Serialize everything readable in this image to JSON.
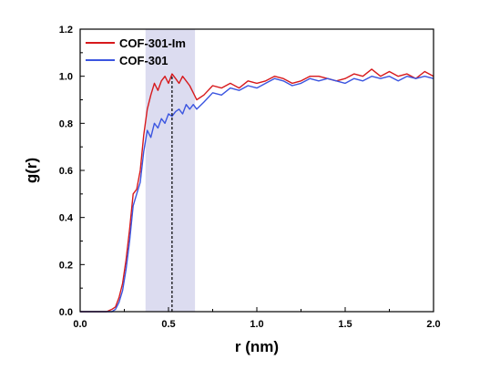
{
  "chart_data": {
    "type": "line",
    "title": "",
    "xlabel": "r (nm)",
    "ylabel": "g(r)",
    "xlim": [
      0.0,
      2.0
    ],
    "ylim": [
      0.0,
      1.2
    ],
    "x_ticks": [
      0.0,
      0.5,
      1.0,
      1.5,
      2.0
    ],
    "x_tick_labels": [
      "0.0",
      "0.5",
      "1.0",
      "1.5",
      "2.0"
    ],
    "y_ticks": [
      0.0,
      0.2,
      0.4,
      0.6,
      0.8,
      1.0,
      1.2
    ],
    "y_tick_labels": [
      "0.0",
      "0.2",
      "0.4",
      "0.6",
      "0.8",
      "1.0",
      "1.2"
    ],
    "grid": false,
    "legend_position": "top-left",
    "shaded_region": {
      "x_range": [
        0.37,
        0.65
      ],
      "color": "#dcdcf0"
    },
    "reference_line": {
      "x": 0.52,
      "style": "dashed",
      "color": "#000000"
    },
    "series": [
      {
        "name": "COF-301-Im",
        "color": "#d7191c",
        "x": [
          0.0,
          0.1,
          0.15,
          0.18,
          0.2,
          0.22,
          0.24,
          0.26,
          0.28,
          0.3,
          0.32,
          0.34,
          0.36,
          0.38,
          0.4,
          0.42,
          0.44,
          0.46,
          0.48,
          0.5,
          0.52,
          0.54,
          0.56,
          0.58,
          0.6,
          0.62,
          0.64,
          0.66,
          0.7,
          0.75,
          0.8,
          0.85,
          0.9,
          0.95,
          1.0,
          1.05,
          1.1,
          1.15,
          1.2,
          1.25,
          1.3,
          1.35,
          1.4,
          1.45,
          1.5,
          1.55,
          1.6,
          1.65,
          1.7,
          1.75,
          1.8,
          1.85,
          1.9,
          1.95,
          2.0
        ],
        "y": [
          0.0,
          0.0,
          0.0,
          0.01,
          0.02,
          0.06,
          0.12,
          0.22,
          0.35,
          0.5,
          0.52,
          0.6,
          0.75,
          0.86,
          0.92,
          0.97,
          0.94,
          0.98,
          1.0,
          0.97,
          1.01,
          0.99,
          0.97,
          1.0,
          0.98,
          0.96,
          0.93,
          0.9,
          0.92,
          0.96,
          0.95,
          0.97,
          0.95,
          0.98,
          0.97,
          0.98,
          1.0,
          0.99,
          0.97,
          0.98,
          1.0,
          1.0,
          0.99,
          0.98,
          0.99,
          1.01,
          1.0,
          1.03,
          1.0,
          1.02,
          1.0,
          1.01,
          0.99,
          1.02,
          1.0
        ]
      },
      {
        "name": "COF-301",
        "color": "#3b55e0",
        "x": [
          0.0,
          0.1,
          0.15,
          0.18,
          0.2,
          0.22,
          0.24,
          0.26,
          0.28,
          0.3,
          0.32,
          0.34,
          0.36,
          0.38,
          0.4,
          0.42,
          0.44,
          0.46,
          0.48,
          0.5,
          0.52,
          0.54,
          0.56,
          0.58,
          0.6,
          0.62,
          0.64,
          0.66,
          0.7,
          0.75,
          0.8,
          0.85,
          0.9,
          0.95,
          1.0,
          1.05,
          1.1,
          1.15,
          1.2,
          1.25,
          1.3,
          1.35,
          1.4,
          1.45,
          1.5,
          1.55,
          1.6,
          1.65,
          1.7,
          1.75,
          1.8,
          1.85,
          1.9,
          1.95,
          2.0
        ],
        "y": [
          0.0,
          0.0,
          0.0,
          0.0,
          0.01,
          0.04,
          0.09,
          0.18,
          0.3,
          0.45,
          0.5,
          0.55,
          0.68,
          0.77,
          0.74,
          0.8,
          0.78,
          0.82,
          0.8,
          0.84,
          0.83,
          0.85,
          0.86,
          0.84,
          0.88,
          0.86,
          0.88,
          0.86,
          0.89,
          0.93,
          0.92,
          0.95,
          0.94,
          0.96,
          0.95,
          0.97,
          0.99,
          0.98,
          0.96,
          0.97,
          0.99,
          0.98,
          0.99,
          0.98,
          0.97,
          0.99,
          0.98,
          1.0,
          0.99,
          1.0,
          0.98,
          1.0,
          0.99,
          1.0,
          0.99
        ]
      }
    ]
  }
}
